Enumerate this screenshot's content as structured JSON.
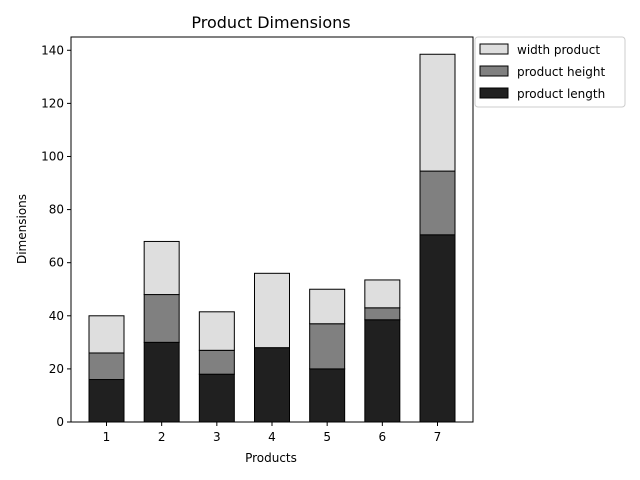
{
  "chart_data": {
    "type": "bar",
    "stacked": true,
    "title": "Product Dimensions",
    "xlabel": "Products",
    "ylabel": "Dimensions",
    "categories": [
      "1",
      "2",
      "3",
      "4",
      "5",
      "6",
      "7"
    ],
    "series": [
      {
        "name": "product length",
        "color": "#202020",
        "values": [
          16,
          30,
          18,
          28,
          20,
          38.5,
          70.5
        ]
      },
      {
        "name": "product height",
        "color": "#808080",
        "values": [
          10,
          18,
          9,
          0,
          17,
          4.5,
          24
        ]
      },
      {
        "name": "width product",
        "color": "#dedede",
        "values": [
          14,
          20,
          14.5,
          28,
          13,
          10.5,
          44
        ]
      }
    ],
    "ylim": [
      0,
      145
    ],
    "yticks": [
      0,
      20,
      40,
      60,
      80,
      100,
      120,
      140
    ],
    "legend_position": "upper-right-outside",
    "legend_order": [
      "width product",
      "product height",
      "product length"
    ],
    "grid": false
  }
}
